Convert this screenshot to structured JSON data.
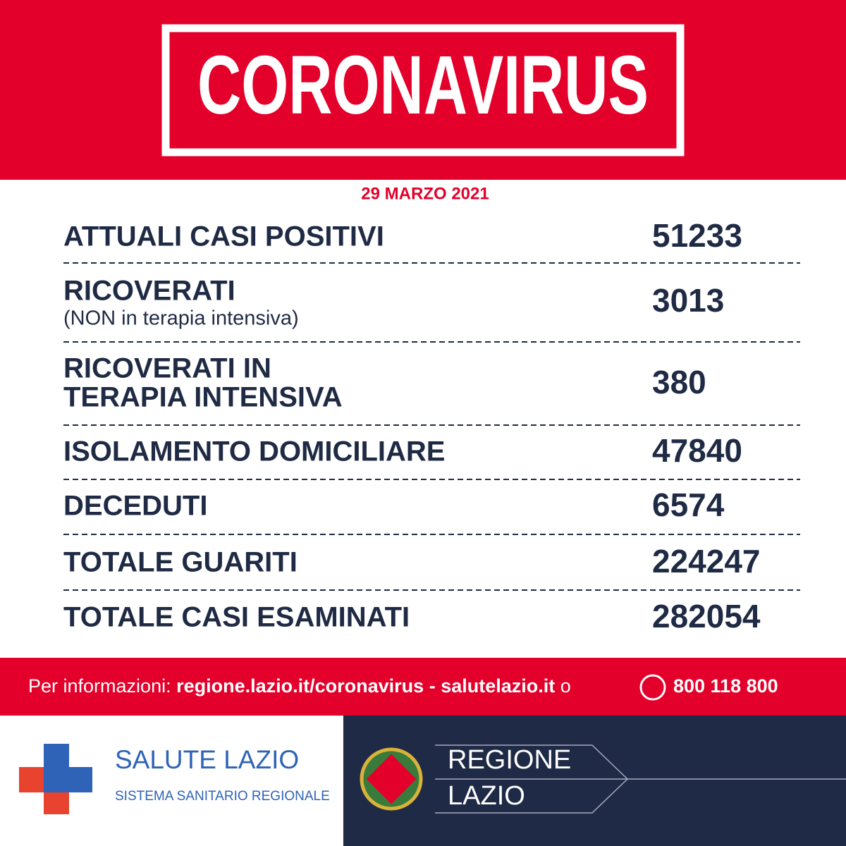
{
  "header": {
    "title": "CORONAVIRUS",
    "date": "29 MARZO 2021"
  },
  "rows": [
    {
      "label": "ATTUALI CASI POSITIVI",
      "value": 51233
    },
    {
      "label": "RICOVERATI",
      "sublabel": "(NON in terapia intensiva)",
      "value": 3013
    },
    {
      "label": "RICOVERATI IN",
      "label2": "TERAPIA INTENSIVA",
      "value": 380
    },
    {
      "label": "ISOLAMENTO DOMICILIARE",
      "value": 47840
    },
    {
      "label": "DECEDUTI",
      "value": 6574
    },
    {
      "label": "TOTALE GUARITI",
      "value": 224247
    },
    {
      "label": "TOTALE CASI ESAMINATI",
      "value": 282054
    }
  ],
  "info": {
    "prefix": "Per informazioni:",
    "link1": "regione.lazio.it/coronavirus",
    "sep": "-",
    "link2": "salutelazio.it",
    "or": "o",
    "phone": "800 118 800"
  },
  "footer": {
    "left_title": "SALUTE LAZIO",
    "left_subtitle": "SISTEMA SANITARIO REGIONALE",
    "right_line1": "REGIONE",
    "right_line2": "LAZIO"
  }
}
